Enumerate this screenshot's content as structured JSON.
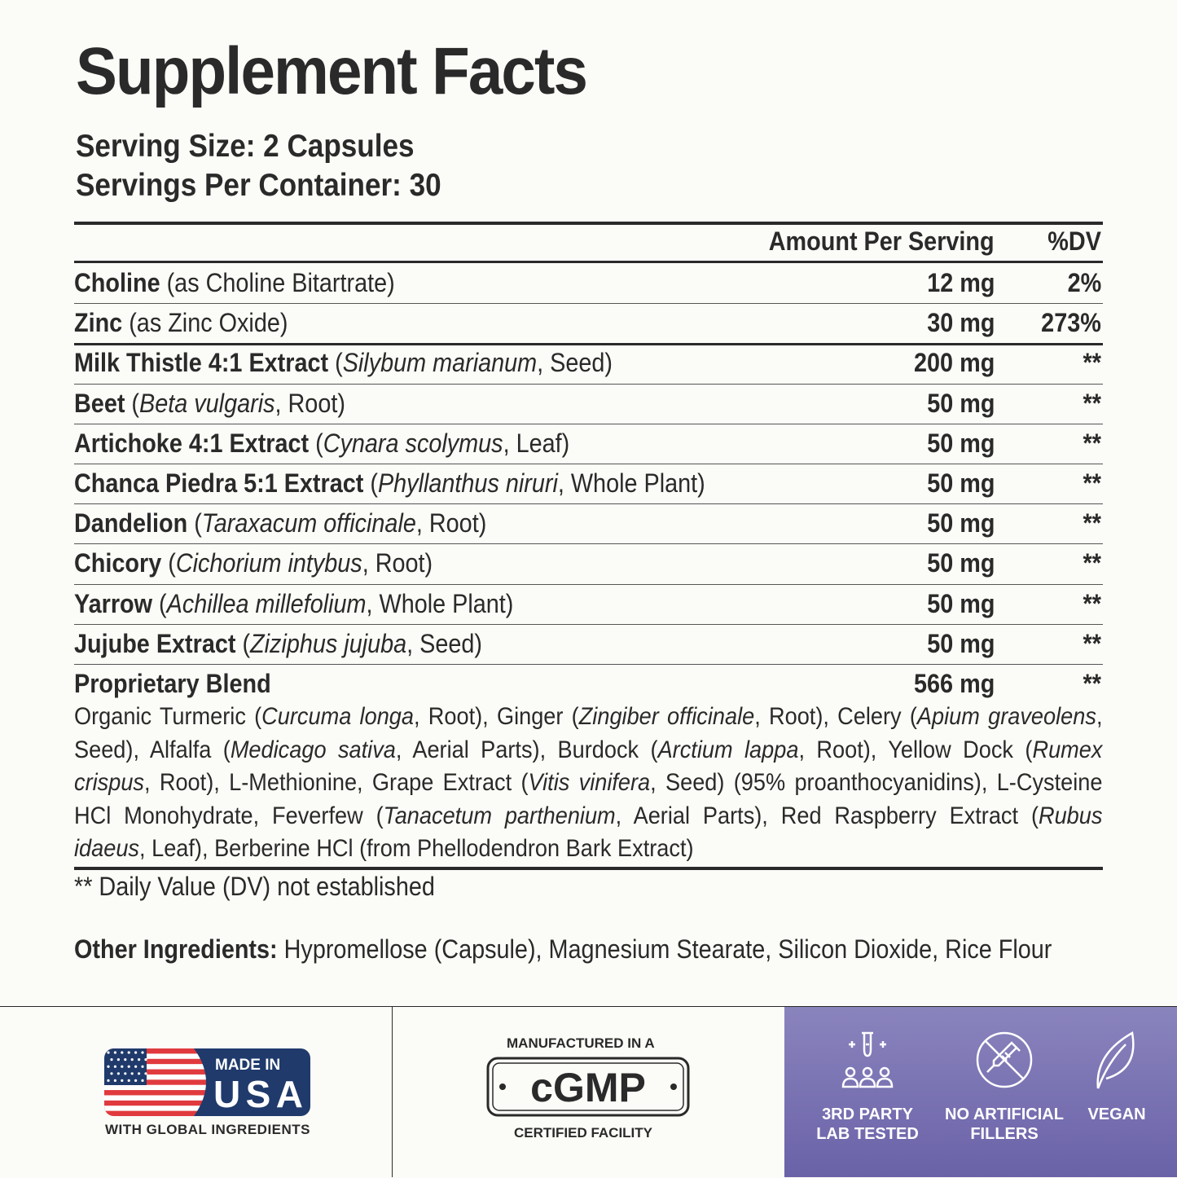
{
  "title": "Supplement Facts",
  "serving_size": "Serving Size: 2 Capsules",
  "servings_per_container": "Servings Per Container: 30",
  "table": {
    "header_amount": "Amount Per Serving",
    "header_dv": "%DV",
    "rows": [
      {
        "name": "Choline",
        "detail_pre": " (as Choline Bitartrate)",
        "latin": "",
        "detail_post": "",
        "amount": "12 mg",
        "dv": "2%"
      },
      {
        "name": "Zinc",
        "detail_pre": " (as Zinc Oxide)",
        "latin": "",
        "detail_post": "",
        "amount": "30 mg",
        "dv": "273%"
      },
      {
        "name": "Milk Thistle 4:1 Extract",
        "detail_pre": " (",
        "latin": "Silybum marianum",
        "detail_post": ", Seed)",
        "amount": "200 mg",
        "dv": "**"
      },
      {
        "name": "Beet",
        "detail_pre": " (",
        "latin": "Beta vulgaris",
        "detail_post": ", Root)",
        "amount": "50 mg",
        "dv": "**"
      },
      {
        "name": "Artichoke 4:1 Extract",
        "detail_pre": " (",
        "latin": "Cynara scolymus",
        "detail_post": ", Leaf)",
        "amount": "50 mg",
        "dv": "**"
      },
      {
        "name": "Chanca Piedra 5:1 Extract",
        "detail_pre": " (",
        "latin": "Phyllanthus niruri",
        "detail_post": ", Whole Plant)",
        "amount": "50 mg",
        "dv": "**"
      },
      {
        "name": "Dandelion",
        "detail_pre": " (",
        "latin": "Taraxacum officinale",
        "detail_post": ", Root)",
        "amount": "50 mg",
        "dv": "**"
      },
      {
        "name": "Chicory",
        "detail_pre": " (",
        "latin": "Cichorium intybus",
        "detail_post": ", Root)",
        "amount": "50 mg",
        "dv": "**"
      },
      {
        "name": "Yarrow",
        "detail_pre": " (",
        "latin": "Achillea millefolium",
        "detail_post": ", Whole Plant)",
        "amount": "50 mg",
        "dv": "**"
      },
      {
        "name": "Jujube Extract",
        "detail_pre": " (",
        "latin": "Ziziphus jujuba",
        "detail_post": ", Seed)",
        "amount": "50 mg",
        "dv": "**"
      },
      {
        "name": "Proprietary Blend",
        "detail_pre": "",
        "latin": "",
        "detail_post": "",
        "amount": "566 mg",
        "dv": "**"
      }
    ]
  },
  "blend": {
    "p1": "Organic Turmeric (",
    "l1": "Curcuma longa",
    "p2": ", Root), Ginger (",
    "l2": "Zingiber officinale",
    "p3": ", Root), Celery (",
    "l3": "Apium graveolens",
    "p4": ", Seed), Alfalfa (",
    "l4": "Medicago sativa",
    "p5": ", Aerial Parts), Burdock (",
    "l5": "Arctium lappa",
    "p6": ", Root), Yellow Dock (",
    "l6": "Rumex crispus",
    "p7": ", Root), L-Methionine, Grape Extract (",
    "l7": "Vitis vinifera",
    "p8": ", Seed) (95% proanthocyanidins), L-Cysteine HCl Monohydrate, Feverfew (",
    "l8": "Tanacetum parthenium",
    "p9": ", Aerial Parts), Red Raspberry Extract (",
    "l9": "Rubus idaeus",
    "p10": ", Leaf), Berberine HCl (from Phellodendron Bark Extract)"
  },
  "footnote": "** Daily Value (DV) not established",
  "other_ingredients": {
    "label": "Other Ingredients:",
    "text": " Hypromellose (Capsule), Magnesium Stearate, Silicon Dioxide, Rice Flour"
  },
  "badges": {
    "usa": {
      "line1": "MADE IN",
      "line2": "USA",
      "caption": "WITH GLOBAL INGREDIENTS",
      "flag_red": "#e03a3e",
      "navy": "#1f3a6b"
    },
    "cgmp": {
      "top": "MANUFACTURED IN A",
      "main": "cGMP",
      "bottom": "CERTIFIED FACILITY"
    },
    "icons": [
      {
        "icon": "lab-test-icon",
        "label1": "3RD PARTY",
        "label2": "LAB TESTED"
      },
      {
        "icon": "no-fillers-icon",
        "label1": "NO ARTIFICIAL",
        "label2": "FILLERS"
      },
      {
        "icon": "leaf-icon",
        "label1": "VEGAN",
        "label2": ""
      }
    ]
  }
}
